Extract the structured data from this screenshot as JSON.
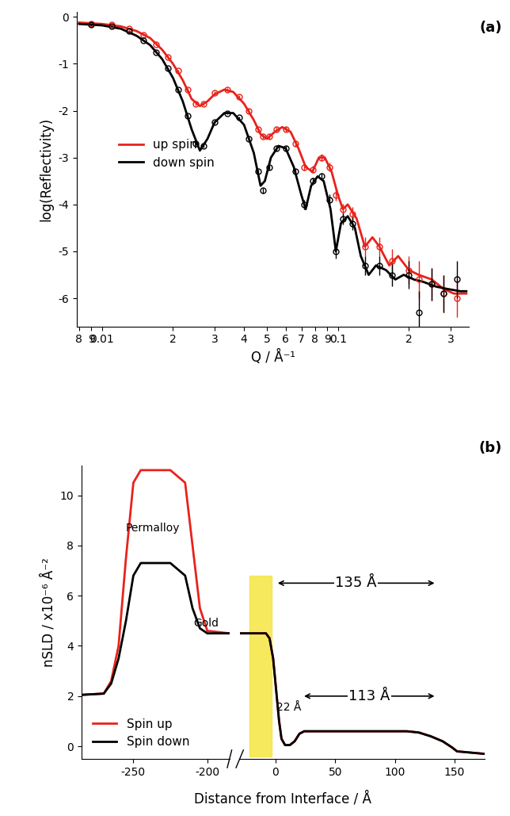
{
  "chart_data": [
    {
      "type": "line",
      "title": "(a)",
      "x_label": "Q / Å⁻¹",
      "y_label": "log(Reflectivity)",
      "log": "x",
      "xlim": [
        0.0078,
        0.36
      ],
      "ylim": [
        -6.6,
        0.1
      ],
      "xticks": [
        {
          "value": 0.008,
          "label": "8"
        },
        {
          "value": 0.009,
          "label": "9"
        },
        0.01,
        {
          "value": 0.02,
          "label": "2"
        },
        {
          "value": 0.03,
          "label": "3"
        },
        {
          "value": 0.04,
          "label": "4"
        },
        {
          "value": 0.05,
          "label": "5"
        },
        {
          "value": 0.06,
          "label": "6"
        },
        {
          "value": 0.07,
          "label": "7"
        },
        {
          "value": 0.08,
          "label": "8"
        },
        {
          "value": 0.09,
          "label": "9"
        },
        0.1,
        {
          "value": 0.2,
          "label": "2"
        },
        {
          "value": 0.3,
          "label": "3"
        }
      ],
      "yticks": [
        0,
        -1,
        -2,
        -3,
        -4,
        -5,
        -6
      ],
      "legend": "center left",
      "series": [
        {
          "name": "up spin",
          "color": "#e8221b",
          "x": [
            0.008,
            0.01,
            0.012,
            0.014,
            0.016,
            0.018,
            0.02,
            0.022,
            0.024,
            0.026,
            0.028,
            0.03,
            0.033,
            0.036,
            0.04,
            0.044,
            0.047,
            0.05,
            0.054,
            0.058,
            0.063,
            0.068,
            0.073,
            0.078,
            0.083,
            0.088,
            0.094,
            0.1,
            0.105,
            0.11,
            0.12,
            0.13,
            0.14,
            0.15,
            0.165,
            0.18,
            0.2,
            0.22,
            0.25,
            0.28,
            0.31,
            0.35
          ],
          "values": [
            -0.12,
            -0.15,
            -0.2,
            -0.3,
            -0.45,
            -0.7,
            -1.0,
            -1.35,
            -1.75,
            -1.9,
            -1.8,
            -1.65,
            -1.55,
            -1.6,
            -1.85,
            -2.2,
            -2.5,
            -2.6,
            -2.45,
            -2.35,
            -2.45,
            -2.8,
            -3.2,
            -3.3,
            -3.0,
            -3.0,
            -3.3,
            -3.8,
            -4.1,
            -4.0,
            -4.3,
            -4.9,
            -4.7,
            -4.9,
            -5.3,
            -5.1,
            -5.4,
            -5.5,
            -5.6,
            -5.8,
            -5.9,
            -5.9
          ],
          "measured": {
            "x": [
              0.009,
              0.011,
              0.013,
              0.015,
              0.017,
              0.019,
              0.021,
              0.023,
              0.025,
              0.027,
              0.03,
              0.034,
              0.038,
              0.042,
              0.046,
              0.048,
              0.051,
              0.055,
              0.06,
              0.066,
              0.072,
              0.078,
              0.085,
              0.092,
              0.098,
              0.105,
              0.115,
              0.13,
              0.15,
              0.17,
              0.2,
              0.22,
              0.25,
              0.28,
              0.32
            ],
            "values": [
              -0.14,
              -0.17,
              -0.25,
              -0.38,
              -0.58,
              -0.85,
              -1.15,
              -1.55,
              -1.85,
              -1.85,
              -1.62,
              -1.55,
              -1.7,
              -2.0,
              -2.4,
              -2.55,
              -2.55,
              -2.4,
              -2.4,
              -2.7,
              -3.2,
              -3.25,
              -3.0,
              -3.2,
              -3.8,
              -4.1,
              -4.2,
              -4.9,
              -4.9,
              -5.2,
              -5.4,
              -5.6,
              -5.7,
              -5.9,
              -6.0
            ],
            "errors": [
              0.02,
              0.02,
              0.02,
              0.02,
              0.02,
              0.02,
              0.02,
              0.03,
              0.03,
              0.03,
              0.03,
              0.03,
              0.03,
              0.04,
              0.05,
              0.05,
              0.05,
              0.05,
              0.05,
              0.06,
              0.08,
              0.08,
              0.08,
              0.1,
              0.12,
              0.12,
              0.15,
              0.2,
              0.2,
              0.25,
              0.3,
              0.4,
              0.35,
              0.4,
              0.4
            ]
          }
        },
        {
          "name": "down spin",
          "color": "#000000",
          "x": [
            0.008,
            0.01,
            0.012,
            0.014,
            0.016,
            0.018,
            0.02,
            0.022,
            0.024,
            0.026,
            0.028,
            0.03,
            0.033,
            0.036,
            0.04,
            0.044,
            0.047,
            0.049,
            0.052,
            0.056,
            0.06,
            0.065,
            0.07,
            0.073,
            0.077,
            0.082,
            0.087,
            0.093,
            0.098,
            0.103,
            0.11,
            0.118,
            0.125,
            0.135,
            0.145,
            0.16,
            0.175,
            0.19,
            0.21,
            0.23,
            0.26,
            0.29,
            0.33,
            0.35
          ],
          "values": [
            -0.15,
            -0.18,
            -0.25,
            -0.4,
            -0.6,
            -0.9,
            -1.3,
            -1.8,
            -2.4,
            -2.85,
            -2.6,
            -2.25,
            -2.05,
            -2.05,
            -2.3,
            -2.9,
            -3.6,
            -3.5,
            -3.0,
            -2.75,
            -2.8,
            -3.2,
            -3.8,
            -4.1,
            -3.6,
            -3.4,
            -3.5,
            -4.1,
            -5.0,
            -4.4,
            -4.25,
            -4.5,
            -5.1,
            -5.5,
            -5.3,
            -5.4,
            -5.6,
            -5.5,
            -5.6,
            -5.65,
            -5.75,
            -5.8,
            -5.85,
            -5.85
          ],
          "measured": {
            "x": [
              0.009,
              0.011,
              0.013,
              0.015,
              0.017,
              0.019,
              0.021,
              0.023,
              0.025,
              0.027,
              0.03,
              0.034,
              0.038,
              0.042,
              0.046,
              0.048,
              0.051,
              0.055,
              0.06,
              0.066,
              0.072,
              0.078,
              0.085,
              0.092,
              0.098,
              0.105,
              0.115,
              0.13,
              0.15,
              0.17,
              0.2,
              0.22,
              0.25,
              0.28,
              0.32
            ],
            "values": [
              -0.17,
              -0.2,
              -0.3,
              -0.5,
              -0.75,
              -1.1,
              -1.55,
              -2.1,
              -2.7,
              -2.75,
              -2.25,
              -2.05,
              -2.15,
              -2.6,
              -3.3,
              -3.7,
              -3.2,
              -2.8,
              -2.8,
              -3.3,
              -4.0,
              -3.5,
              -3.4,
              -3.9,
              -5.0,
              -4.3,
              -4.4,
              -5.3,
              -5.3,
              -5.5,
              -5.5,
              -6.3,
              -5.7,
              -5.9,
              -5.6
            ],
            "errors": [
              0.02,
              0.02,
              0.02,
              0.02,
              0.02,
              0.02,
              0.02,
              0.03,
              0.03,
              0.03,
              0.03,
              0.03,
              0.03,
              0.04,
              0.05,
              0.06,
              0.05,
              0.05,
              0.05,
              0.06,
              0.1,
              0.08,
              0.08,
              0.12,
              0.15,
              0.12,
              0.15,
              0.2,
              0.2,
              0.25,
              0.3,
              0.45,
              0.35,
              0.4,
              0.4
            ]
          }
        }
      ]
    },
    {
      "type": "line",
      "title": "(b)",
      "x_label": "Distance from Interface / Å",
      "y_label": "nSLD / x10⁻⁶ Å⁻²",
      "xlim": [
        -285,
        175
      ],
      "x_break": [
        -185,
        -30
      ],
      "ylim": [
        -0.5,
        11.2
      ],
      "xticks": [
        -250,
        -200,
        0,
        50,
        100,
        150
      ],
      "yticks": [
        0,
        2,
        4,
        6,
        8,
        10
      ],
      "legend": "lower left",
      "series": [
        {
          "name": "Spin up",
          "color": "#e8221b",
          "x": [
            -285,
            -270,
            -265,
            -260,
            -255,
            -250,
            -245,
            -225,
            -215,
            -210,
            -205,
            -200,
            -185,
            -30,
            -8,
            -5,
            -2,
            0,
            3,
            5,
            8,
            12,
            16,
            20,
            24,
            110,
            120,
            130,
            140,
            148,
            152,
            175
          ],
          "values": [
            2.05,
            2.1,
            2.6,
            4.0,
            7.5,
            10.5,
            11.0,
            11.0,
            10.5,
            8.0,
            5.5,
            4.6,
            4.5,
            4.5,
            4.5,
            4.3,
            3.5,
            2.5,
            1.0,
            0.3,
            0.05,
            0.05,
            0.2,
            0.5,
            0.6,
            0.6,
            0.55,
            0.4,
            0.2,
            -0.05,
            -0.2,
            -0.3
          ]
        },
        {
          "name": "Spin down",
          "color": "#000000",
          "x": [
            -285,
            -270,
            -265,
            -260,
            -255,
            -250,
            -245,
            -225,
            -215,
            -210,
            -205,
            -200,
            -185,
            -30,
            -8,
            -5,
            -2,
            0,
            3,
            5,
            8,
            12,
            16,
            20,
            24,
            110,
            120,
            130,
            140,
            148,
            152,
            175
          ],
          "values": [
            2.05,
            2.1,
            2.5,
            3.5,
            5.0,
            6.8,
            7.3,
            7.3,
            6.8,
            5.5,
            4.7,
            4.5,
            4.5,
            4.5,
            4.5,
            4.3,
            3.5,
            2.5,
            1.0,
            0.3,
            0.05,
            0.05,
            0.2,
            0.5,
            0.6,
            0.6,
            0.55,
            0.4,
            0.2,
            -0.05,
            -0.2,
            -0.3
          ]
        }
      ],
      "annotations": [
        {
          "text": "Permalloy",
          "x": -237,
          "y": 8.7
        },
        {
          "text": "Gold",
          "x": -201,
          "y": 4.9
        },
        {
          "text": "135 Å",
          "x": [
            0,
            135
          ],
          "y": 6.5
        },
        {
          "text": "113 Å",
          "x": [
            22,
            135
          ],
          "y": 2.0
        },
        {
          "text": "22 Å",
          "x": 11,
          "y": 1.55
        }
      ]
    }
  ]
}
